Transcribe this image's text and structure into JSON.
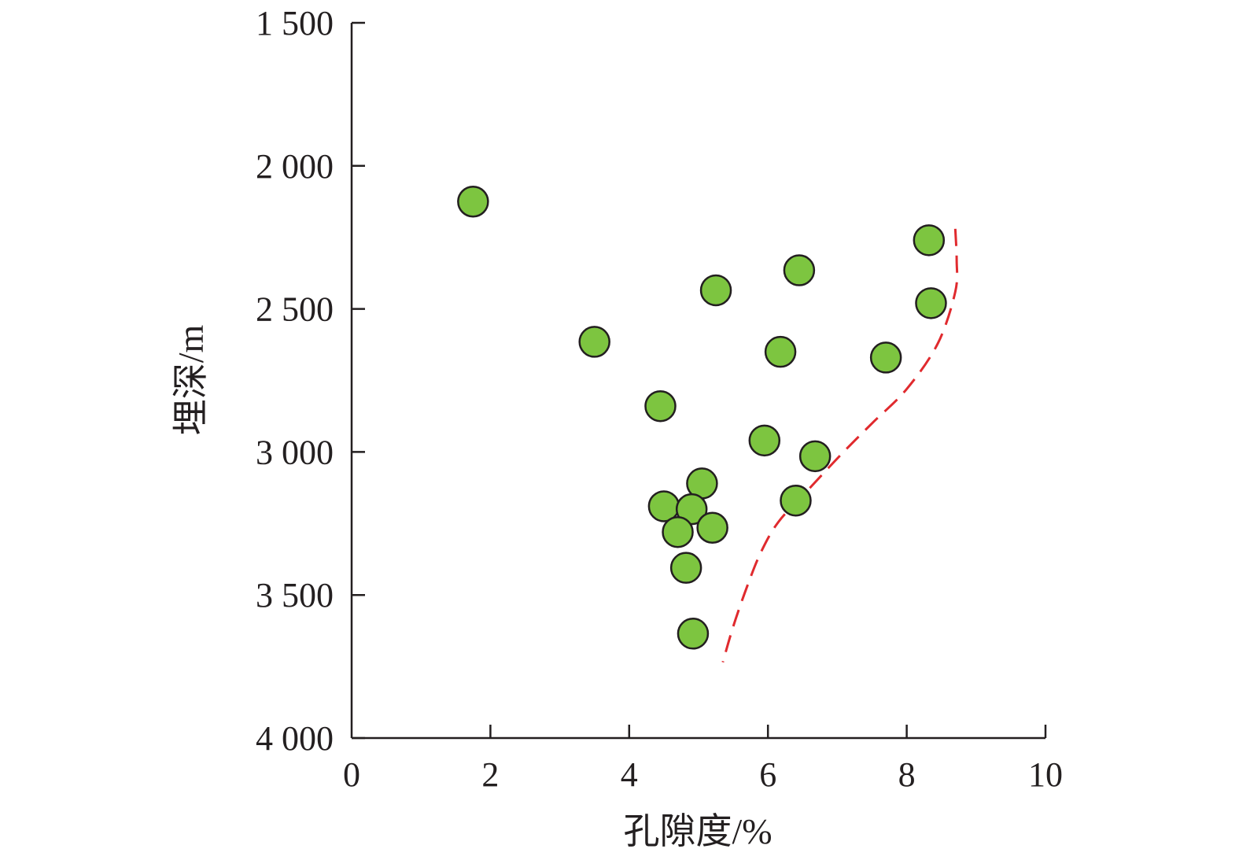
{
  "chart_data": {
    "type": "scatter",
    "title": "",
    "xlabel": "孔隙度/%",
    "ylabel": "埋深/m",
    "xlim": [
      0,
      10
    ],
    "ylim": [
      1500,
      4000
    ],
    "y_inverted": true,
    "grid": false,
    "x_ticks": [
      0,
      2,
      4,
      6,
      8,
      10
    ],
    "x_tick_labels": [
      "0",
      "2",
      "4",
      "6",
      "8",
      "10"
    ],
    "y_ticks": [
      1500,
      2000,
      2500,
      3000,
      3500,
      4000
    ],
    "y_tick_labels": [
      "1 500",
      "2 000",
      "2 500",
      "3 000",
      "3 500",
      "4 000"
    ],
    "series": [
      {
        "marker_color": "#7dc540",
        "points": [
          {
            "x": 1.75,
            "y": 2125
          },
          {
            "x": 8.32,
            "y": 2260
          },
          {
            "x": 6.45,
            "y": 2365
          },
          {
            "x": 5.25,
            "y": 2435
          },
          {
            "x": 8.35,
            "y": 2480
          },
          {
            "x": 3.5,
            "y": 2615
          },
          {
            "x": 6.18,
            "y": 2650
          },
          {
            "x": 7.7,
            "y": 2670
          },
          {
            "x": 4.45,
            "y": 2840
          },
          {
            "x": 5.95,
            "y": 2960
          },
          {
            "x": 6.68,
            "y": 3015
          },
          {
            "x": 5.05,
            "y": 3110
          },
          {
            "x": 6.4,
            "y": 3170
          },
          {
            "x": 4.5,
            "y": 3190
          },
          {
            "x": 4.9,
            "y": 3200
          },
          {
            "x": 5.2,
            "y": 3265
          },
          {
            "x": 4.7,
            "y": 3280
          },
          {
            "x": 4.82,
            "y": 3405
          },
          {
            "x": 4.92,
            "y": 3635
          }
        ]
      }
    ],
    "trend_line": {
      "style": "dashed",
      "color": "#e02a2e",
      "points": [
        {
          "x": 8.7,
          "y": 2220
        },
        {
          "x": 8.72,
          "y": 2330
        },
        {
          "x": 8.7,
          "y": 2440
        },
        {
          "x": 8.45,
          "y": 2620
        },
        {
          "x": 8.0,
          "y": 2780
        },
        {
          "x": 7.5,
          "y": 2900
        },
        {
          "x": 7.05,
          "y": 3010
        },
        {
          "x": 6.55,
          "y": 3140
        },
        {
          "x": 6.15,
          "y": 3245
        },
        {
          "x": 5.9,
          "y": 3350
        },
        {
          "x": 5.7,
          "y": 3470
        },
        {
          "x": 5.5,
          "y": 3610
        },
        {
          "x": 5.35,
          "y": 3735
        }
      ]
    }
  }
}
